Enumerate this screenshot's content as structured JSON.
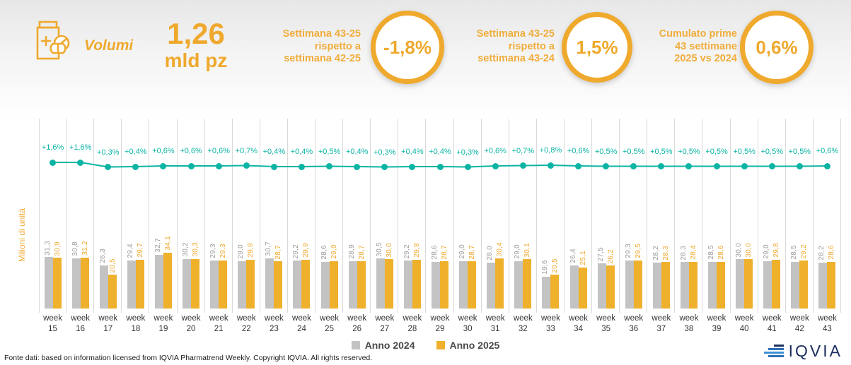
{
  "header": {
    "volumi_label": "Volumi",
    "big_number": "1,26",
    "big_number_unit": "mld pz",
    "kpis": [
      {
        "label_lines": [
          "Settimana 43-25",
          "rispetto a",
          "settimana 42-25"
        ],
        "value": "-1,8%"
      },
      {
        "label_lines": [
          "Settimana 43-25",
          "rispetto a",
          "settimana 43-24"
        ],
        "value": "1,5%"
      },
      {
        "label_lines": [
          "Cumulato prime",
          "43 settimane",
          "2025 vs 2024"
        ],
        "value": "0,6%"
      }
    ]
  },
  "chart_data": {
    "type": "bar",
    "x_prefix": "week",
    "categories": [
      "15",
      "16",
      "17",
      "18",
      "19",
      "20",
      "21",
      "22",
      "23",
      "24",
      "25",
      "26",
      "27",
      "28",
      "29",
      "30",
      "31",
      "32",
      "33",
      "34",
      "35",
      "36",
      "37",
      "38",
      "39",
      "40",
      "41",
      "42",
      "43"
    ],
    "series": [
      {
        "name": "Anno 2024",
        "color": "#c3c3c3",
        "values": [
          31.3,
          30.8,
          26.3,
          29.4,
          32.7,
          30.2,
          29.3,
          29.0,
          30.7,
          29.2,
          28.6,
          28.9,
          30.5,
          29.2,
          28.6,
          29.0,
          28.0,
          29.0,
          19.6,
          26.4,
          27.5,
          29.3,
          28.2,
          28.3,
          28.5,
          30.0,
          29.0,
          28.5,
          28.2
        ]
      },
      {
        "name": "Anno 2025",
        "color": "#efb02c",
        "values": [
          30.9,
          31.2,
          20.5,
          29.7,
          34.1,
          30.3,
          29.3,
          29.9,
          28.7,
          29.9,
          29.0,
          28.7,
          30.0,
          29.8,
          28.7,
          28.7,
          30.4,
          30.1,
          20.5,
          25.1,
          26.2,
          29.5,
          28.3,
          28.4,
          28.6,
          30.0,
          29.8,
          29.2,
          28.6
        ]
      }
    ],
    "trend_line": {
      "color": "#0cb4a4",
      "labels": [
        "+1,6%",
        "+1,6%",
        "+0,3%",
        "+0,4%",
        "+0,6%",
        "+0,6%",
        "+0,6%",
        "+0,7%",
        "+0,4%",
        "+0,4%",
        "+0,5%",
        "+0,4%",
        "+0,3%",
        "+0,4%",
        "+0,4%",
        "+0,3%",
        "+0,6%",
        "+0,7%",
        "+0,8%",
        "+0,6%",
        "+0,5%",
        "+0,5%",
        "+0,5%",
        "+0,5%",
        "+0,5%",
        "+0,5%",
        "+0,5%",
        "+0,5%",
        "+0,6%"
      ],
      "values": [
        1.6,
        1.6,
        0.3,
        0.4,
        0.6,
        0.6,
        0.6,
        0.7,
        0.4,
        0.4,
        0.5,
        0.4,
        0.3,
        0.4,
        0.4,
        0.3,
        0.6,
        0.7,
        0.8,
        0.6,
        0.5,
        0.5,
        0.5,
        0.5,
        0.5,
        0.5,
        0.5,
        0.5,
        0.6
      ]
    },
    "ylabel": "Milioni di unità",
    "ylim": [
      0,
      40
    ],
    "grid": "vertical",
    "legend_position": "bottom"
  },
  "footer": {
    "source_text": "Fonte dati: based on information licensed from IQVIA Pharmatrend Weekly. Copyright IQVIA. All rights reserved.",
    "logo_text": "IQVIA"
  },
  "colors": {
    "accent_orange": "#efa92d",
    "bar_gray": "#c3c3c3",
    "bar_orange": "#efb02c",
    "trend_teal": "#0cb4a4",
    "logo_navy": "#1b2e5e"
  }
}
